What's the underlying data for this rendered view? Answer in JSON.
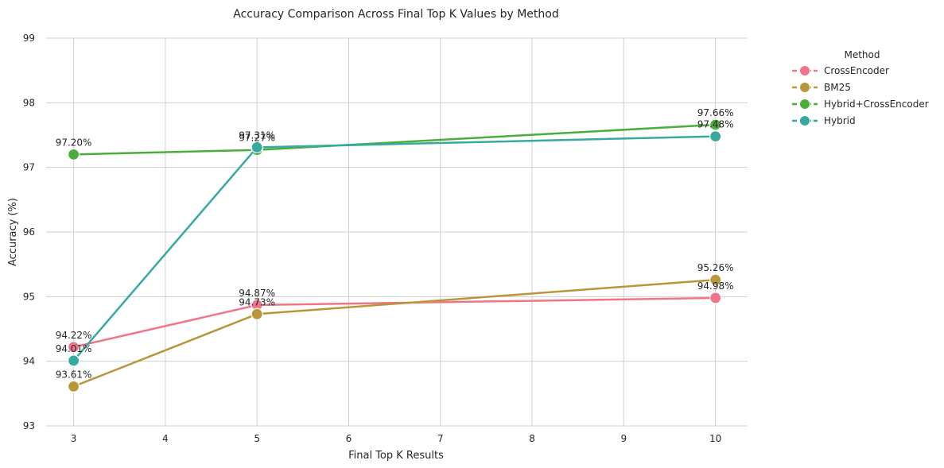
{
  "chart_data": {
    "type": "line",
    "title": "Accuracy Comparison Across Final Top K Values by Method",
    "xlabel": "Final Top K Results",
    "ylabel": "Accuracy (%)",
    "x": [
      3,
      5,
      10
    ],
    "xlim": [
      2.7,
      10.35
    ],
    "ylim": [
      93,
      99
    ],
    "xticks": [
      3,
      4,
      5,
      6,
      7,
      8,
      9,
      10
    ],
    "yticks": [
      93,
      94,
      95,
      96,
      97,
      98,
      99
    ],
    "grid": true,
    "legend": {
      "title": "Method",
      "placement": "outside-right"
    },
    "series": [
      {
        "name": "CrossEncoder",
        "color": "#f1748a",
        "values": [
          94.22,
          94.87,
          94.98
        ],
        "labels": [
          "94.22%",
          "94.87%",
          "94.98%"
        ]
      },
      {
        "name": "BM25",
        "color": "#b8963a",
        "values": [
          93.61,
          94.73,
          95.26
        ],
        "labels": [
          "93.61%",
          "94.73%",
          "95.26%"
        ]
      },
      {
        "name": "Hybrid+CrossEncoder",
        "color": "#4cae3a",
        "values": [
          97.2,
          97.27,
          97.66
        ],
        "labels": [
          "97.20%",
          "97.27%",
          "97.66%"
        ]
      },
      {
        "name": "Hybrid",
        "color": "#36aaa0",
        "values": [
          94.01,
          97.31,
          97.48
        ],
        "labels": [
          "94.01%",
          "97.31%",
          "97.48%"
        ]
      }
    ]
  }
}
